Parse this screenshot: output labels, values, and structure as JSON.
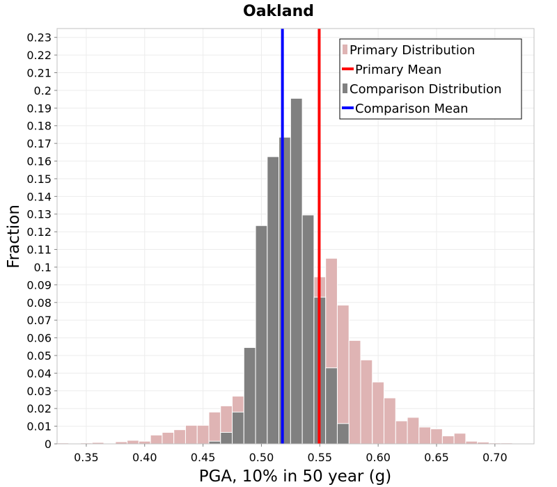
{
  "chart_data": {
    "type": "bar",
    "title": "Oakland",
    "xlabel": "PGA, 10% in 50 year (g)",
    "ylabel": "Fraction",
    "xlim": [
      0.325,
      0.7335
    ],
    "ylim": [
      0,
      0.235
    ],
    "bin_width": 0.01,
    "x_ticks": [
      "0.35",
      "0.40",
      "0.45",
      "0.50",
      "0.55",
      "0.60",
      "0.65",
      "0.70"
    ],
    "x_tick_values": [
      0.35,
      0.4,
      0.45,
      0.5,
      0.55,
      0.6,
      0.65,
      0.7
    ],
    "y_ticks": [
      "0",
      "0.01",
      "0.02",
      "0.03",
      "0.04",
      "0.05",
      "0.06",
      "0.07",
      "0.08",
      "0.09",
      "0.1",
      "0.11",
      "0.12",
      "0.13",
      "0.14",
      "0.15",
      "0.16",
      "0.17",
      "0.18",
      "0.19",
      "0.2",
      "0.21",
      "0.22",
      "0.23"
    ],
    "y_tick_values": [
      0,
      0.01,
      0.02,
      0.03,
      0.04,
      0.05,
      0.06,
      0.07,
      0.08,
      0.09,
      0.1,
      0.11,
      0.12,
      0.13,
      0.14,
      0.15,
      0.16,
      0.17,
      0.18,
      0.19,
      0.2,
      0.21,
      0.22,
      0.23
    ],
    "grid": true,
    "legend_position": "top-right",
    "series": [
      {
        "name": "Primary Distribution",
        "kind": "histogram",
        "color": "#dfb4b4",
        "bins": [
          {
            "x": 0.33,
            "y": 0.0005
          },
          {
            "x": 0.34,
            "y": 0.0003
          },
          {
            "x": 0.35,
            "y": 0.0005
          },
          {
            "x": 0.36,
            "y": 0.0008
          },
          {
            "x": 0.37,
            "y": 0.0003
          },
          {
            "x": 0.38,
            "y": 0.0012
          },
          {
            "x": 0.39,
            "y": 0.002
          },
          {
            "x": 0.4,
            "y": 0.0015
          },
          {
            "x": 0.41,
            "y": 0.005
          },
          {
            "x": 0.42,
            "y": 0.0065
          },
          {
            "x": 0.43,
            "y": 0.008
          },
          {
            "x": 0.44,
            "y": 0.0105
          },
          {
            "x": 0.45,
            "y": 0.0105
          },
          {
            "x": 0.46,
            "y": 0.018
          },
          {
            "x": 0.47,
            "y": 0.0215
          },
          {
            "x": 0.48,
            "y": 0.027
          },
          {
            "x": 0.49,
            "y": 0.032
          },
          {
            "x": 0.5,
            "y": 0.042
          },
          {
            "x": 0.51,
            "y": 0.05
          },
          {
            "x": 0.52,
            "y": 0.058
          },
          {
            "x": 0.53,
            "y": 0.066
          },
          {
            "x": 0.54,
            "y": 0.074
          },
          {
            "x": 0.55,
            "y": 0.0945
          },
          {
            "x": 0.56,
            "y": 0.105
          },
          {
            "x": 0.57,
            "y": 0.0785
          },
          {
            "x": 0.58,
            "y": 0.0585
          },
          {
            "x": 0.59,
            "y": 0.0475
          },
          {
            "x": 0.6,
            "y": 0.035
          },
          {
            "x": 0.61,
            "y": 0.026
          },
          {
            "x": 0.62,
            "y": 0.013
          },
          {
            "x": 0.63,
            "y": 0.015
          },
          {
            "x": 0.64,
            "y": 0.0095
          },
          {
            "x": 0.65,
            "y": 0.0085
          },
          {
            "x": 0.66,
            "y": 0.0045
          },
          {
            "x": 0.67,
            "y": 0.006
          },
          {
            "x": 0.68,
            "y": 0.0015
          },
          {
            "x": 0.69,
            "y": 0.001
          },
          {
            "x": 0.7,
            "y": 0.0005
          },
          {
            "x": 0.71,
            "y": 0.0005
          }
        ]
      },
      {
        "name": "Comparison Distribution",
        "kind": "histogram",
        "color": "#808080",
        "bins": [
          {
            "x": 0.46,
            "y": 0.0015
          },
          {
            "x": 0.47,
            "y": 0.0065
          },
          {
            "x": 0.48,
            "y": 0.018
          },
          {
            "x": 0.49,
            "y": 0.0545
          },
          {
            "x": 0.5,
            "y": 0.1235
          },
          {
            "x": 0.51,
            "y": 0.1625
          },
          {
            "x": 0.52,
            "y": 0.1735
          },
          {
            "x": 0.53,
            "y": 0.1955
          },
          {
            "x": 0.54,
            "y": 0.1295
          },
          {
            "x": 0.55,
            "y": 0.083
          },
          {
            "x": 0.56,
            "y": 0.043
          },
          {
            "x": 0.57,
            "y": 0.0115
          }
        ]
      },
      {
        "name": "Primary Mean",
        "kind": "vline",
        "x": 0.5495,
        "color": "#ff0000"
      },
      {
        "name": "Comparison Mean",
        "kind": "vline",
        "x": 0.518,
        "color": "#0000ff"
      }
    ]
  }
}
